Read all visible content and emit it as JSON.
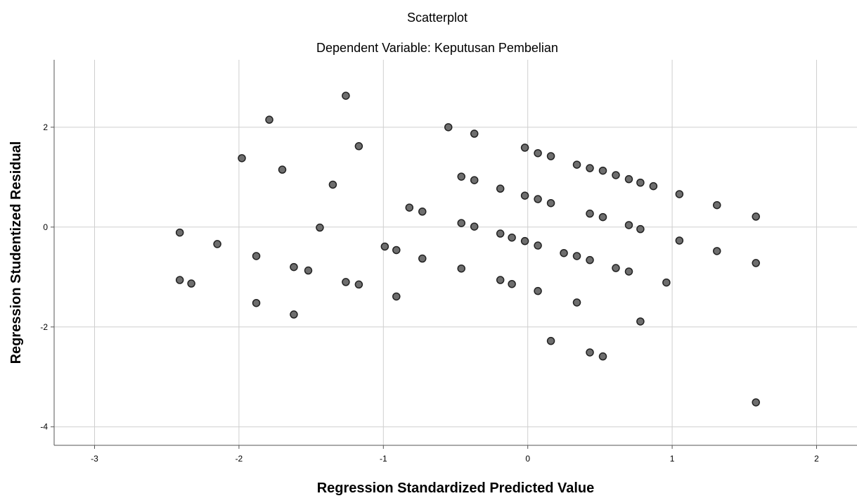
{
  "chart_data": {
    "type": "scatter",
    "title": "Scatterplot",
    "subtitle": "Dependent Variable: Keputusan Pembelian",
    "x_label": "Regression Standardized Predicted Value",
    "y_label": "Regression Studentized Residual",
    "xlim": [
      -3.28,
      2.28
    ],
    "ylim": [
      -4.37,
      3.35
    ],
    "xticks": [
      -3,
      -2,
      -1,
      0,
      1,
      2
    ],
    "yticks": [
      -4,
      -2,
      0,
      2
    ],
    "grid": true,
    "color": "#6e6e6e",
    "x": [
      -2.41,
      -2.41,
      -2.33,
      -2.15,
      -1.98,
      -1.88,
      -1.88,
      -1.79,
      -1.7,
      -1.62,
      -1.62,
      -1.52,
      -1.44,
      -1.35,
      -1.26,
      -1.26,
      -1.17,
      -1.17,
      -0.99,
      -0.91,
      -0.91,
      -0.82,
      -0.73,
      -0.73,
      -0.55,
      -0.46,
      -0.46,
      -0.46,
      -0.37,
      -0.37,
      -0.37,
      -0.19,
      -0.19,
      -0.19,
      -0.11,
      -0.11,
      -0.02,
      -0.02,
      -0.02,
      0.07,
      0.07,
      0.07,
      0.07,
      0.16,
      0.16,
      0.16,
      0.25,
      0.34,
      0.34,
      0.34,
      0.43,
      0.43,
      0.43,
      0.43,
      0.52,
      0.52,
      0.52,
      0.61,
      0.61,
      0.7,
      0.7,
      0.7,
      0.78,
      0.78,
      0.78,
      0.87,
      0.96,
      1.05,
      1.05,
      1.31,
      1.31,
      1.58,
      1.58,
      1.58
    ],
    "y": [
      -0.11,
      -1.06,
      -1.13,
      -0.34,
      1.38,
      -0.58,
      -1.52,
      2.15,
      1.15,
      -0.8,
      -1.75,
      -0.87,
      -0.01,
      0.85,
      2.63,
      -1.1,
      1.62,
      -1.15,
      -0.39,
      -0.46,
      -1.39,
      0.39,
      0.31,
      -0.63,
      2.0,
      1.01,
      0.08,
      -0.83,
      1.87,
      0.94,
      0.01,
      0.77,
      -0.13,
      -1.06,
      -0.21,
      -1.14,
      1.59,
      0.63,
      -0.28,
      1.48,
      0.56,
      -0.37,
      -1.28,
      1.42,
      0.48,
      -2.28,
      -0.52,
      1.25,
      -0.58,
      -1.51,
      1.18,
      0.27,
      -0.66,
      -2.51,
      1.13,
      0.2,
      -2.59,
      1.04,
      -0.82,
      0.96,
      0.04,
      -0.89,
      0.89,
      -0.04,
      -1.89,
      0.82,
      -1.11,
      0.66,
      -0.27,
      0.44,
      -0.48,
      0.21,
      -0.72,
      -3.51
    ]
  }
}
